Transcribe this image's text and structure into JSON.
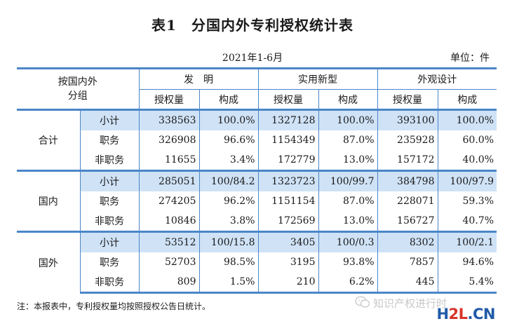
{
  "title": "表1　分国内外专利授权统计表",
  "period": "2021年1-6月",
  "unit": "单位：件",
  "header": {
    "row_group_label_line1": "按国内外",
    "row_group_label_line2": "分组",
    "categories": [
      "发　明",
      "实用新型",
      "外观设计"
    ],
    "metrics": [
      "授权量",
      "构成"
    ]
  },
  "groups": [
    {
      "name": "合计",
      "rows": [
        {
          "label": "小计",
          "values": [
            "338563",
            "100.0%",
            "1327128",
            "100.0%",
            "393100",
            "100.0%"
          ]
        },
        {
          "label": "职务",
          "values": [
            "326908",
            "96.6%",
            "1154349",
            "87.0%",
            "235928",
            "60.0%"
          ]
        },
        {
          "label": "非职务",
          "values": [
            "11655",
            "3.4%",
            "172779",
            "13.0%",
            "157172",
            "40.0%"
          ]
        }
      ]
    },
    {
      "name": "国内",
      "rows": [
        {
          "label": "小计",
          "values": [
            "285051",
            "100/84.2",
            "1323723",
            "100/99.7",
            "384798",
            "100/97.9"
          ]
        },
        {
          "label": "职务",
          "values": [
            "274205",
            "96.2%",
            "1151154",
            "87.0%",
            "228071",
            "59.3%"
          ]
        },
        {
          "label": "非职务",
          "values": [
            "10846",
            "3.8%",
            "172569",
            "13.0%",
            "156727",
            "40.7%"
          ]
        }
      ]
    },
    {
      "name": "国外",
      "rows": [
        {
          "label": "小计",
          "values": [
            "53512",
            "100/15.8",
            "3405",
            "100/0.3",
            "8302",
            "100/2.1"
          ]
        },
        {
          "label": "职务",
          "values": [
            "52703",
            "98.5%",
            "3195",
            "93.8%",
            "7857",
            "94.6%"
          ]
        },
        {
          "label": "非职务",
          "values": [
            "809",
            "1.5%",
            "210",
            "6.2%",
            "445",
            "5.4%"
          ]
        }
      ]
    }
  ],
  "note": "注：本报表中，专利授权量均按照授权公告日统计。",
  "watermark": {
    "text": "知识产权进行时",
    "brand_part1": "H",
    "brand_part2": "2L",
    "brand_part3": ".CN",
    "icon": "wechat-icon"
  },
  "colors": {
    "rule": "#4a86c8",
    "subtotal_shade": "#cfe2f6"
  }
}
